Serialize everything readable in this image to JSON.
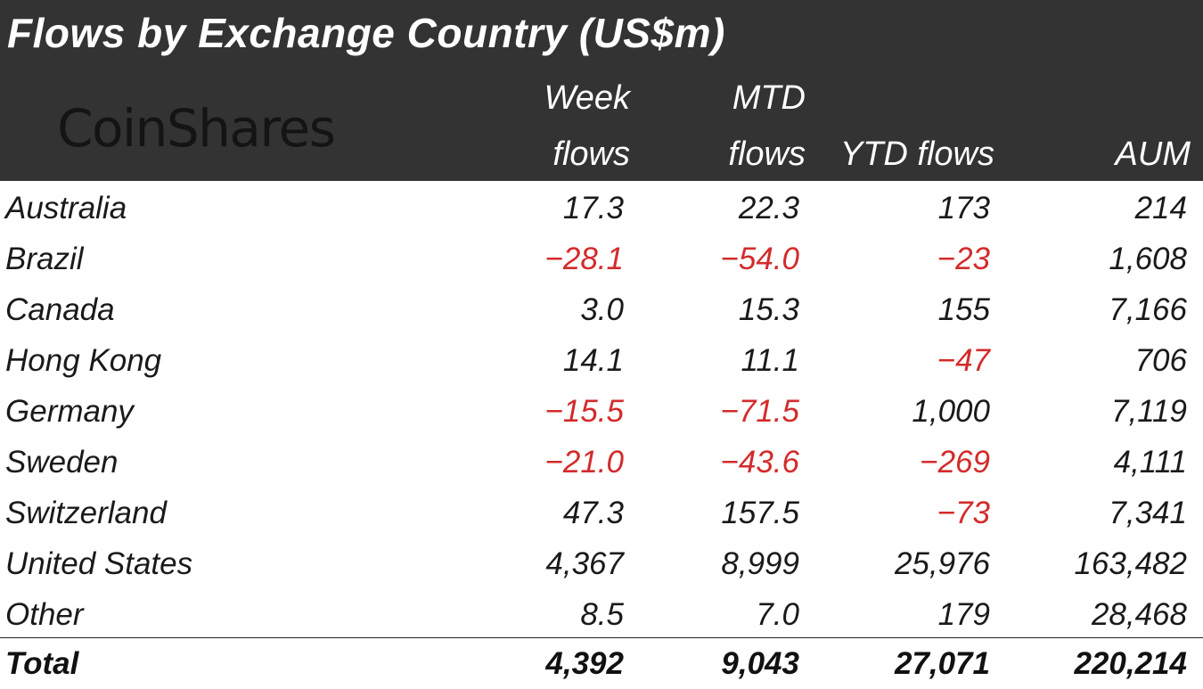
{
  "colors": {
    "header_bg": "#333333",
    "negative": "#d32b2b",
    "text": "#1a1a1a"
  },
  "chart_data": {
    "type": "table",
    "title": "Flows by Exchange Country (US$m)",
    "brand": "CoinShares",
    "columns": [
      {
        "key": "country",
        "line1": "",
        "line2": ""
      },
      {
        "key": "week",
        "line1": "Week",
        "line2": "flows"
      },
      {
        "key": "mtd",
        "line1": "MTD",
        "line2": "flows"
      },
      {
        "key": "ytd",
        "line1": "",
        "line2": "YTD flows"
      },
      {
        "key": "aum",
        "line1": "",
        "line2": "AUM"
      }
    ],
    "rows": [
      {
        "country": "Australia",
        "week": "17.3",
        "mtd": "22.3",
        "ytd": "173",
        "aum": "214"
      },
      {
        "country": "Brazil",
        "week": "-28.1",
        "mtd": "-54.0",
        "ytd": "-23",
        "aum": "1,608"
      },
      {
        "country": "Canada",
        "week": "3.0",
        "mtd": "15.3",
        "ytd": "155",
        "aum": "7,166"
      },
      {
        "country": "Hong Kong",
        "week": "14.1",
        "mtd": "11.1",
        "ytd": "-47",
        "aum": "706"
      },
      {
        "country": "Germany",
        "week": "-15.5",
        "mtd": "-71.5",
        "ytd": "1,000",
        "aum": "7,119"
      },
      {
        "country": "Sweden",
        "week": "-21.0",
        "mtd": "-43.6",
        "ytd": "-269",
        "aum": "4,111"
      },
      {
        "country": "Switzerland",
        "week": "47.3",
        "mtd": "157.5",
        "ytd": "-73",
        "aum": "7,341"
      },
      {
        "country": "United States",
        "week": "4,367",
        "mtd": "8,999",
        "ytd": "25,976",
        "aum": "163,482"
      },
      {
        "country": "Other",
        "week": "8.5",
        "mtd": "7.0",
        "ytd": "179",
        "aum": "28,468"
      }
    ],
    "total": {
      "country": "Total",
      "week": "4,392",
      "mtd": "9,043",
      "ytd": "27,071",
      "aum": "220,214"
    }
  }
}
